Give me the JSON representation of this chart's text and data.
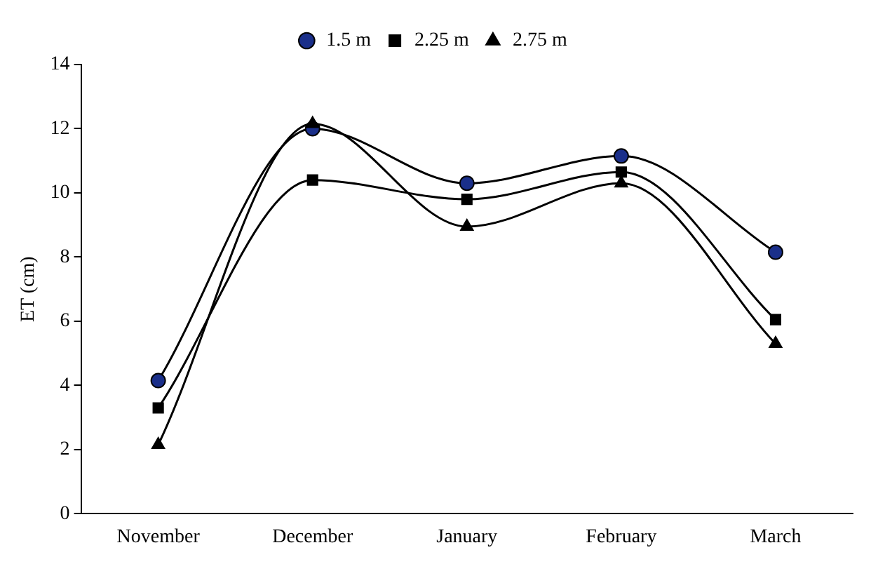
{
  "chart_data": {
    "type": "line",
    "ylabel": "ET (cm)",
    "categories": [
      "November",
      "December",
      "January",
      "February",
      "March"
    ],
    "series": [
      {
        "name": "1.5 m",
        "color": "#1a2f8a",
        "marker": "circle",
        "values": [
          4.15,
          12.0,
          10.3,
          11.15,
          8.15
        ]
      },
      {
        "name": "2.25 m",
        "color": "#000000",
        "marker": "square",
        "values": [
          3.3,
          10.4,
          9.8,
          10.65,
          6.05
        ]
      },
      {
        "name": "2.75 m",
        "color": "#000000",
        "marker": "triangle",
        "values": [
          2.15,
          12.15,
          8.95,
          10.3,
          5.3
        ]
      }
    ],
    "ylim": [
      0,
      14
    ],
    "yticks": [
      0,
      2,
      4,
      6,
      8,
      10,
      12,
      14
    ],
    "grid": false,
    "legend": "top",
    "line_style": "solid"
  }
}
